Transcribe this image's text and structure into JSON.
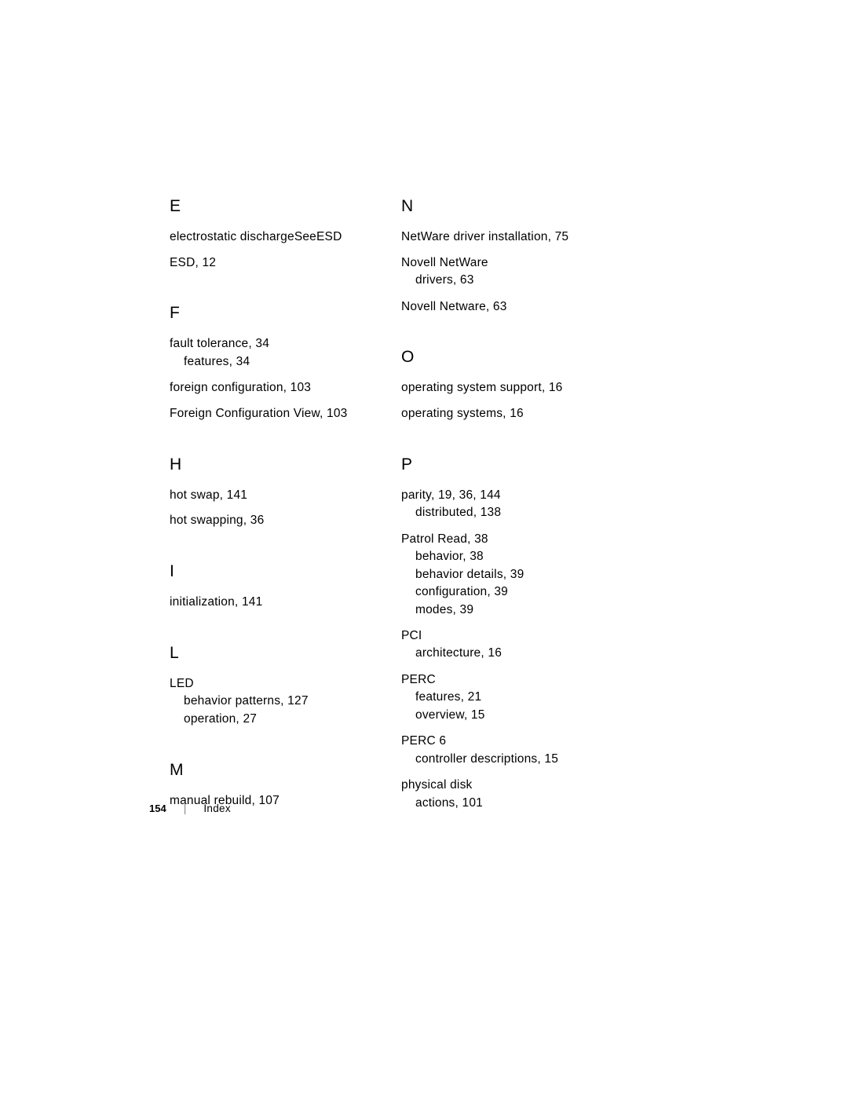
{
  "leftColumn": {
    "sections": [
      {
        "letter": "E",
        "entries": [
          {
            "main": "electrostatic dischargeSeeESD",
            "subs": []
          },
          {
            "main": "ESD, 12",
            "subs": []
          }
        ]
      },
      {
        "letter": "F",
        "entries": [
          {
            "main": "fault tolerance, 34",
            "subs": [
              "features, 34"
            ]
          },
          {
            "main": "foreign configuration, 103",
            "subs": []
          },
          {
            "main": "Foreign Configuration View, 103",
            "subs": []
          }
        ]
      },
      {
        "letter": "H",
        "entries": [
          {
            "main": "hot swap, 141",
            "subs": []
          },
          {
            "main": "hot swapping, 36",
            "subs": []
          }
        ]
      },
      {
        "letter": "I",
        "entries": [
          {
            "main": "initialization, 141",
            "subs": []
          }
        ]
      },
      {
        "letter": "L",
        "entries": [
          {
            "main": "LED",
            "subs": [
              "behavior patterns, 127",
              "operation, 27"
            ]
          }
        ]
      },
      {
        "letter": "M",
        "entries": [
          {
            "main": "manual rebuild, 107",
            "subs": []
          }
        ]
      }
    ]
  },
  "rightColumn": {
    "sections": [
      {
        "letter": "N",
        "entries": [
          {
            "main": "NetWare driver installation, 75",
            "subs": []
          },
          {
            "main": "Novell NetWare",
            "subs": [
              "drivers, 63"
            ]
          },
          {
            "main": "Novell Netware, 63",
            "subs": []
          }
        ]
      },
      {
        "letter": "O",
        "entries": [
          {
            "main": "operating system support, 16",
            "subs": []
          },
          {
            "main": "operating systems, 16",
            "subs": []
          }
        ]
      },
      {
        "letter": "P",
        "entries": [
          {
            "main": "parity, 19, 36, 144",
            "subs": [
              "distributed, 138"
            ]
          },
          {
            "main": "Patrol Read, 38",
            "subs": [
              "behavior, 38",
              "behavior details, 39",
              "configuration, 39",
              "modes, 39"
            ]
          },
          {
            "main": "PCI",
            "subs": [
              "architecture, 16"
            ]
          },
          {
            "main": "PERC",
            "subs": [
              "features, 21",
              "overview, 15"
            ]
          },
          {
            "main": "PERC 6",
            "subs": [
              "controller descriptions, 15"
            ]
          },
          {
            "main": "physical disk",
            "subs": [
              "actions, 101"
            ]
          }
        ]
      }
    ]
  },
  "footer": {
    "pageNumber": "154",
    "separator": "|",
    "label": "Index"
  }
}
